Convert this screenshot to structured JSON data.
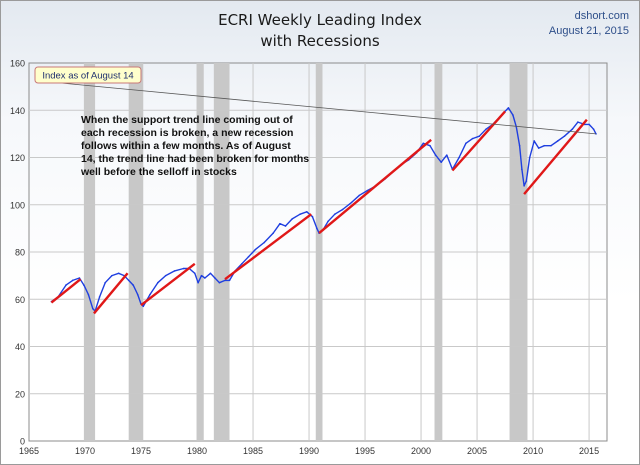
{
  "header": {
    "title_line1": "ECRI Weekly Leading Index",
    "title_line2": "with Recessions",
    "source": "dshort.com",
    "date": "August 21, 2015"
  },
  "chart_data": {
    "type": "line",
    "title": "ECRI Weekly Leading Index with Recessions",
    "xlabel": "",
    "ylabel": "",
    "xlim": [
      1965,
      2016.6
    ],
    "ylim": [
      0,
      160
    ],
    "x_ticks": [
      1965,
      1970,
      1975,
      1980,
      1985,
      1990,
      1995,
      2000,
      2005,
      2010,
      2015
    ],
    "y_ticks": [
      0,
      20,
      40,
      60,
      80,
      100,
      120,
      140,
      160
    ],
    "grid": true,
    "colors": {
      "index_line": "#1f3fe0",
      "trend_line": "#e01818",
      "recession_band": "#c8c8c8",
      "callout_fill": "#ffffcc",
      "callout_border": "#c87878"
    },
    "recessions": [
      {
        "start": 1969.9,
        "end": 1970.9
      },
      {
        "start": 1973.9,
        "end": 1975.2
      },
      {
        "start": 1980.0,
        "end": 1980.6
      },
      {
        "start": 1981.5,
        "end": 1982.9
      },
      {
        "start": 1990.6,
        "end": 1991.2
      },
      {
        "start": 2001.2,
        "end": 2001.9
      },
      {
        "start": 2007.9,
        "end": 2009.5
      }
    ],
    "series": [
      {
        "x": [
          1967.0,
          1967.6,
          1968.3,
          1968.9,
          1969.5,
          1969.9,
          1970.3,
          1970.7,
          1970.9,
          1971.3,
          1971.8,
          1972.4,
          1973.0,
          1973.5,
          1973.9,
          1974.3,
          1974.7,
          1975.0,
          1975.2,
          1975.8,
          1976.5,
          1977.2,
          1978.0,
          1978.8,
          1979.3,
          1979.8,
          1980.1,
          1980.4,
          1980.7,
          1981.2,
          1981.6,
          1982.0,
          1982.5,
          1982.9,
          1983.4,
          1984.0,
          1984.6,
          1985.2,
          1986.0,
          1986.8,
          1987.4,
          1987.9,
          1988.5,
          1989.2,
          1989.8,
          1990.3,
          1990.7,
          1990.9,
          1991.2,
          1991.7,
          1992.3,
          1993.0,
          1993.8,
          1994.5,
          1995.2,
          1996.0,
          1996.8,
          1997.5,
          1998.2,
          1998.9,
          1999.6,
          2000.2,
          2000.8,
          2001.3,
          2001.8,
          2002.3,
          2002.8,
          2003.4,
          2004.0,
          2004.6,
          2005.2,
          2005.8,
          2006.4,
          2007.0,
          2007.4,
          2007.8,
          2008.2,
          2008.5,
          2008.8,
          2009.0,
          2009.2,
          2009.4,
          2009.7,
          2010.1,
          2010.5,
          2011.0,
          2011.6,
          2012.2,
          2012.8,
          2013.5,
          2014.0,
          2014.6,
          2015.0,
          2015.4,
          2015.62
        ],
        "values": [
          59,
          61,
          66,
          68,
          69,
          66,
          62,
          56,
          55,
          61,
          67,
          70,
          71,
          70,
          68,
          66,
          62,
          58,
          57,
          62,
          67,
          70,
          72,
          73,
          73,
          71,
          67,
          70,
          69,
          71,
          69,
          67,
          68,
          68,
          72,
          75,
          78,
          81,
          84,
          88,
          92,
          91,
          94,
          96,
          97,
          95,
          90,
          88,
          89,
          93,
          96,
          98,
          101,
          104,
          106,
          108,
          111,
          114,
          117,
          119,
          122,
          126,
          125,
          121,
          118,
          121,
          115,
          120,
          126,
          128,
          129,
          132,
          134,
          137,
          139,
          141,
          138,
          133,
          125,
          115,
          108,
          110,
          120,
          127,
          124,
          125,
          125,
          127,
          129,
          132,
          135,
          134,
          134,
          132,
          130
        ]
      },
      {
        "name": "Support trend lines",
        "segments": [
          [
            [
              1967.0,
              58.6
            ],
            [
              1969.6,
              68.5
            ]
          ],
          [
            [
              1970.8,
              54.0
            ],
            [
              1973.8,
              71.0
            ]
          ],
          [
            [
              1975.0,
              57.5
            ],
            [
              1979.8,
              75.0
            ]
          ],
          [
            [
              1982.5,
              68.5
            ],
            [
              1990.2,
              96.0
            ]
          ],
          [
            [
              1990.9,
              88.0
            ],
            [
              2000.9,
              127.5
            ]
          ],
          [
            [
              2002.8,
              114.5
            ],
            [
              2007.5,
              139.5
            ]
          ],
          [
            [
              2009.2,
              104.5
            ],
            [
              2014.8,
              136.0
            ]
          ]
        ]
      }
    ],
    "annotations": {
      "callout_label": "Index as of August 14",
      "note_lines": [
        "When the support trend line coming out of",
        "each recession is broken, a new recession",
        "follows within a few months. As of August",
        "14, the trend line had been broken for months",
        "well before the selloff in stocks"
      ]
    }
  }
}
